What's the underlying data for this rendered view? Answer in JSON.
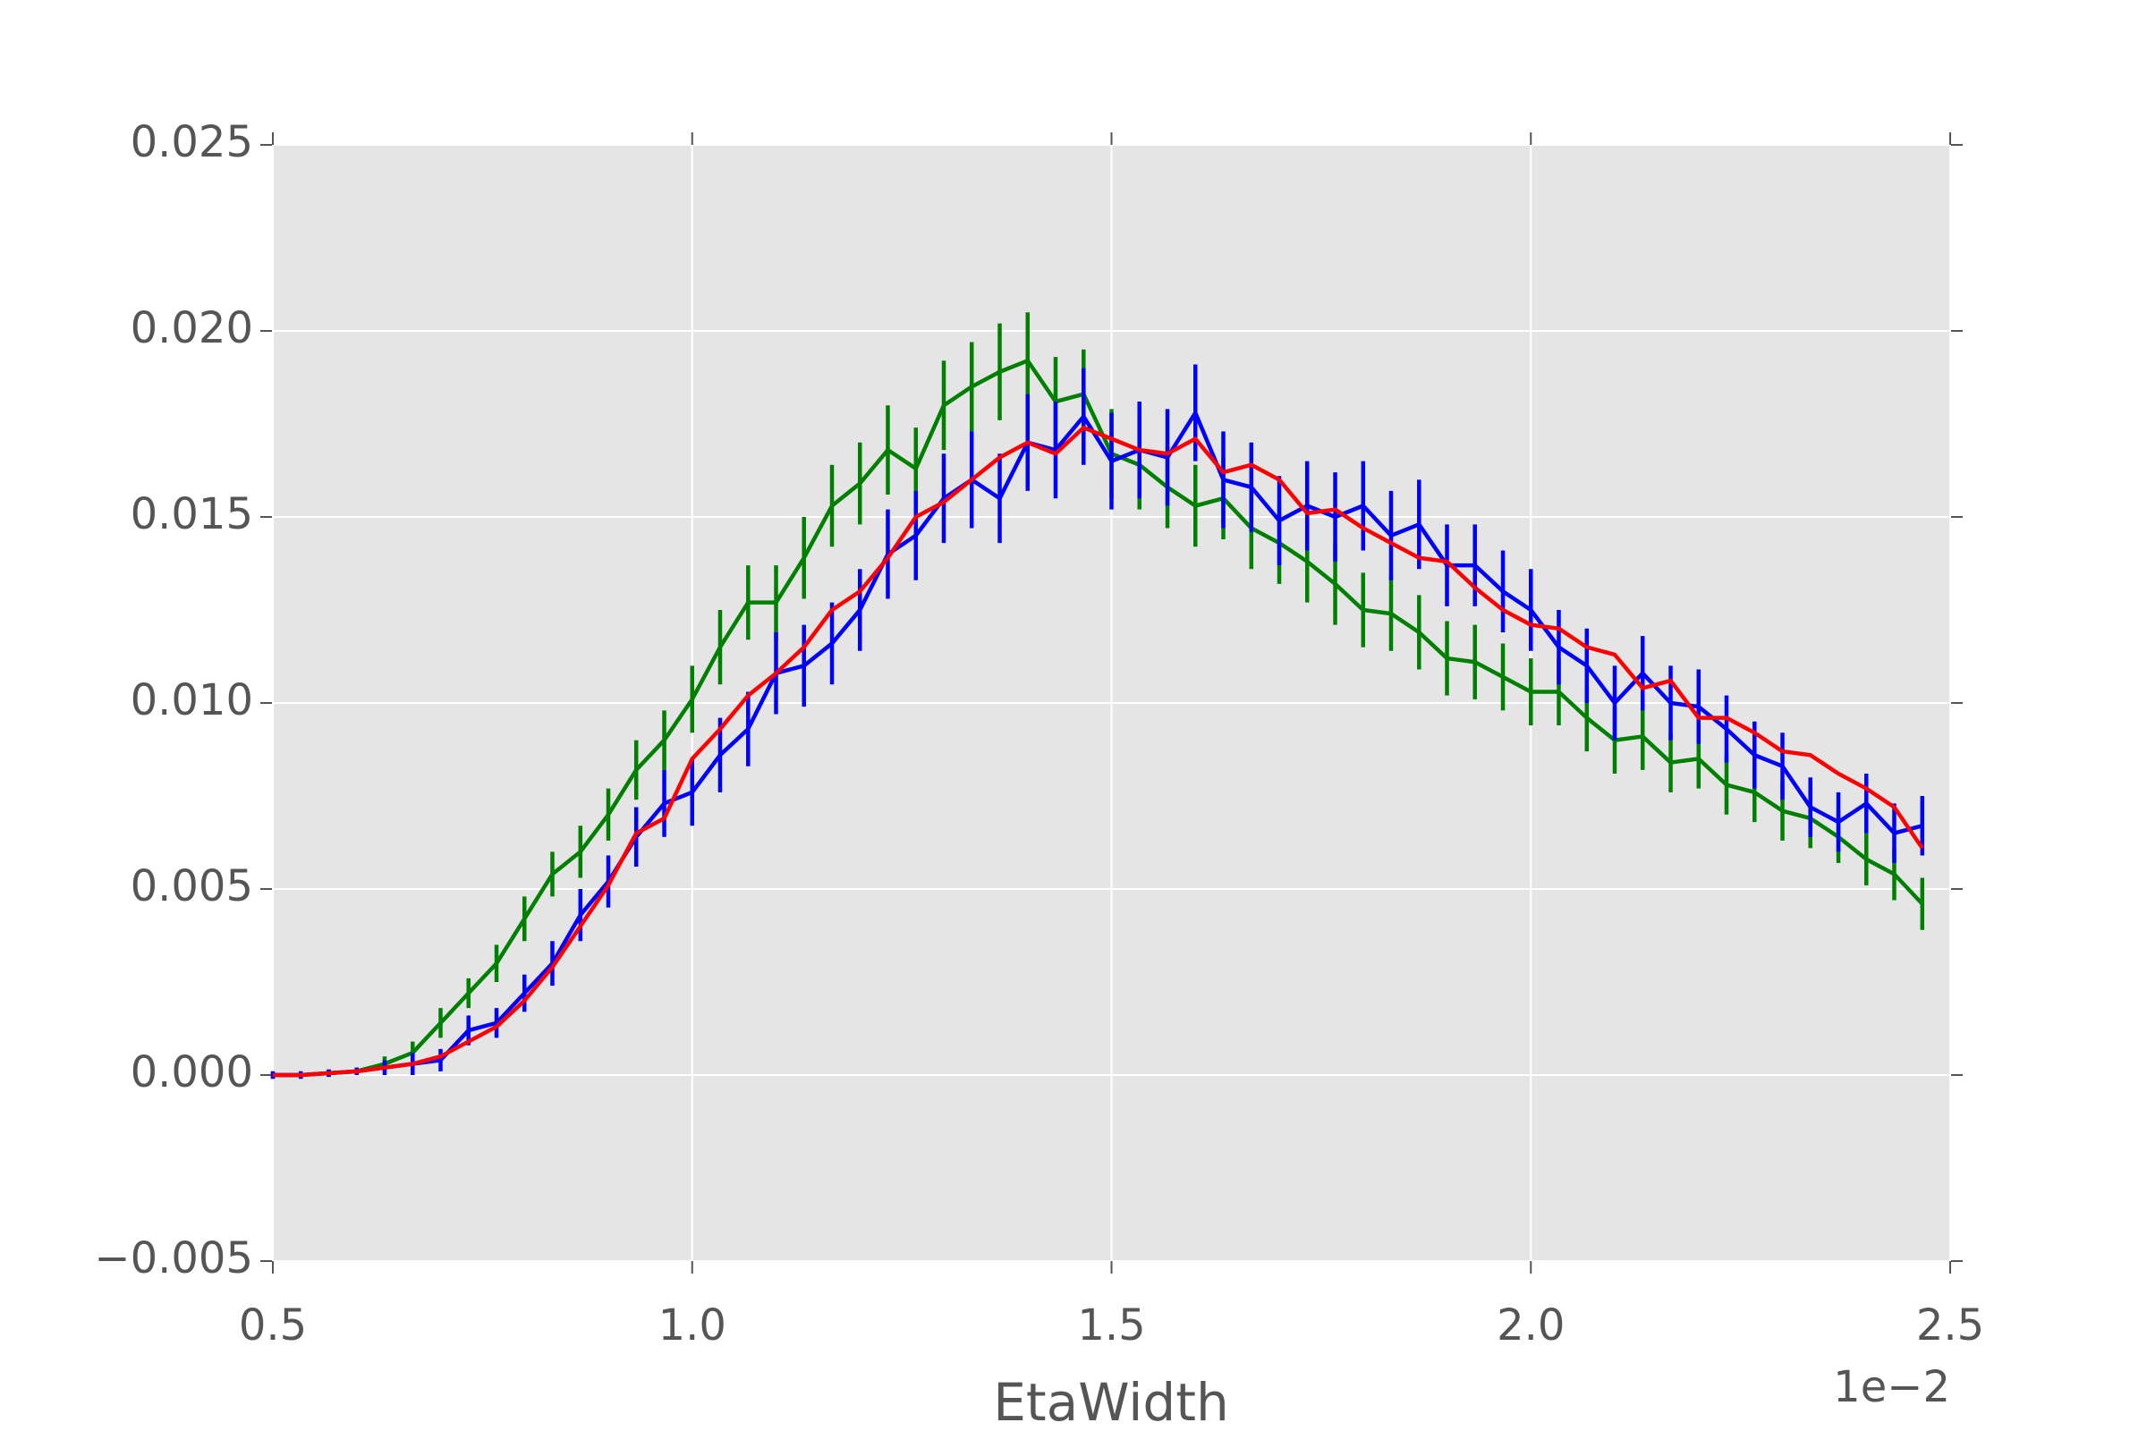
{
  "chart_data": {
    "type": "line",
    "xlabel": "EtaWidth",
    "x_offset_text": "1e−2",
    "x": [
      0.5,
      0.5333,
      0.5667,
      0.6,
      0.6333,
      0.6667,
      0.7,
      0.7333,
      0.7667,
      0.8,
      0.8333,
      0.8667,
      0.9,
      0.9333,
      0.9667,
      1.0,
      1.0333,
      1.0667,
      1.1,
      1.1333,
      1.1667,
      1.2,
      1.2333,
      1.2667,
      1.3,
      1.3333,
      1.3667,
      1.4,
      1.4333,
      1.4667,
      1.5,
      1.5333,
      1.5667,
      1.6,
      1.6333,
      1.6667,
      1.7,
      1.7333,
      1.7667,
      1.8,
      1.8333,
      1.8667,
      1.9,
      1.9333,
      1.9667,
      2.0,
      2.0333,
      2.0667,
      2.1,
      2.1333,
      2.1667,
      2.2,
      2.2333,
      2.2667,
      2.3,
      2.3333,
      2.3667,
      2.4,
      2.4333,
      2.4667
    ],
    "series": [
      {
        "color": "#008000",
        "values": [
          0,
          0,
          5e-05,
          0.0001,
          0.0003,
          0.0006,
          0.0014,
          0.0022,
          0.003,
          0.0042,
          0.0054,
          0.006,
          0.007,
          0.0082,
          0.009,
          0.0101,
          0.0115,
          0.0127,
          0.0127,
          0.0139,
          0.0153,
          0.0159,
          0.0168,
          0.0163,
          0.018,
          0.0185,
          0.0189,
          0.0192,
          0.0181,
          0.0183,
          0.0167,
          0.0164,
          0.0158,
          0.0153,
          0.0155,
          0.0147,
          0.0143,
          0.0138,
          0.0132,
          0.0125,
          0.0124,
          0.0119,
          0.0112,
          0.0111,
          0.0107,
          0.0103,
          0.0103,
          0.0096,
          0.009,
          0.0091,
          0.0084,
          0.0085,
          0.0078,
          0.0076,
          0.0071,
          0.0069,
          0.0064,
          0.0058,
          0.0054,
          0.0046
        ],
        "errors": [
          0.0001,
          0.0001,
          0.0001,
          0.0001,
          0.0002,
          0.0003,
          0.0004,
          0.0004,
          0.0005,
          0.0006,
          0.0006,
          0.0007,
          0.0007,
          0.0008,
          0.0008,
          0.0009,
          0.001,
          0.001,
          0.001,
          0.0011,
          0.0011,
          0.0011,
          0.0012,
          0.0011,
          0.0012,
          0.0012,
          0.0013,
          0.0013,
          0.0012,
          0.0012,
          0.0012,
          0.0012,
          0.0011,
          0.0011,
          0.0011,
          0.0011,
          0.0011,
          0.0011,
          0.0011,
          0.001,
          0.001,
          0.001,
          0.001,
          0.001,
          0.0009,
          0.0009,
          0.0009,
          0.0009,
          0.0009,
          0.0009,
          0.0008,
          0.0008,
          0.0008,
          0.0008,
          0.0008,
          0.0008,
          0.0007,
          0.0007,
          0.0007,
          0.0007
        ]
      },
      {
        "color": "#0000ff",
        "values": [
          0,
          0,
          5e-05,
          0.0001,
          0.0002,
          0.0003,
          0.0004,
          0.0012,
          0.0014,
          0.0022,
          0.003,
          0.0043,
          0.0052,
          0.0064,
          0.0073,
          0.0076,
          0.0086,
          0.0093,
          0.0108,
          0.011,
          0.0116,
          0.0125,
          0.014,
          0.0145,
          0.0155,
          0.016,
          0.0155,
          0.017,
          0.0168,
          0.0177,
          0.0165,
          0.0168,
          0.0166,
          0.0178,
          0.016,
          0.0158,
          0.0149,
          0.0153,
          0.015,
          0.0153,
          0.0145,
          0.0148,
          0.0137,
          0.0137,
          0.013,
          0.0125,
          0.0115,
          0.011,
          0.01,
          0.0108,
          0.01,
          0.0099,
          0.0093,
          0.0086,
          0.0083,
          0.0072,
          0.0068,
          0.0073,
          0.0065,
          0.0067
        ],
        "errors": [
          0.0001,
          0.0001,
          0.0001,
          0.0001,
          0.0002,
          0.0003,
          0.0003,
          0.0004,
          0.0004,
          0.0005,
          0.0006,
          0.0007,
          0.0007,
          0.0008,
          0.0009,
          0.0009,
          0.001,
          0.001,
          0.0011,
          0.0011,
          0.0011,
          0.0011,
          0.0012,
          0.0012,
          0.0012,
          0.0013,
          0.0012,
          0.0013,
          0.0013,
          0.0013,
          0.0013,
          0.0013,
          0.0013,
          0.0013,
          0.0013,
          0.0012,
          0.0012,
          0.0012,
          0.0012,
          0.0012,
          0.0012,
          0.0012,
          0.0011,
          0.0011,
          0.0011,
          0.0011,
          0.001,
          0.001,
          0.001,
          0.001,
          0.001,
          0.001,
          0.0009,
          0.0009,
          0.0009,
          0.0008,
          0.0008,
          0.0008,
          0.0008,
          0.0008
        ]
      },
      {
        "color": "#ff0000",
        "values": [
          0,
          0,
          5e-05,
          0.0001,
          0.0002,
          0.0003,
          0.0005,
          0.0009,
          0.0013,
          0.002,
          0.0029,
          0.004,
          0.0051,
          0.0065,
          0.0069,
          0.0085,
          0.0093,
          0.0102,
          0.0108,
          0.0115,
          0.0125,
          0.013,
          0.0139,
          0.015,
          0.0154,
          0.016,
          0.0166,
          0.017,
          0.0167,
          0.0174,
          0.0171,
          0.0168,
          0.0167,
          0.0171,
          0.0162,
          0.0164,
          0.016,
          0.0151,
          0.0152,
          0.0147,
          0.0143,
          0.0139,
          0.0138,
          0.0131,
          0.0125,
          0.0121,
          0.012,
          0.0115,
          0.0113,
          0.0104,
          0.0106,
          0.0096,
          0.0096,
          0.0092,
          0.0087,
          0.0086,
          0.0081,
          0.0077,
          0.0072,
          0.0061
        ]
      }
    ],
    "xlim": [
      0.5,
      2.5
    ],
    "xticks": [
      0.5,
      {
        "value": 1,
        "label": "1.0"
      },
      1.5,
      {
        "value": 2,
        "label": "2.0"
      },
      2.5
    ],
    "ylim": [
      -0.005,
      0.025
    ],
    "yticks": [
      {
        "value": -0.005,
        "label": "−0.005"
      },
      {
        "value": 0,
        "label": "0.000"
      },
      0.005,
      {
        "value": 0.01,
        "label": "0.010"
      },
      0.015,
      {
        "value": 0.02,
        "label": "0.020"
      },
      0.025
    ],
    "grid": true
  }
}
